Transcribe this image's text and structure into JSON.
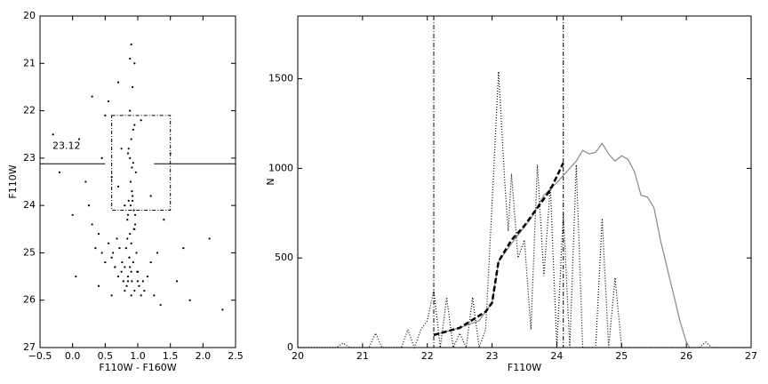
{
  "chart_data": [
    {
      "type": "scatter",
      "xlabel": "F110W - F160W",
      "ylabel": "F110W",
      "xlim": [
        -0.5,
        2.5
      ],
      "ylim": [
        27,
        20
      ],
      "y_inverted": true,
      "xticks": [
        {
          "value": -0.5,
          "label": "−0.5"
        },
        {
          "value": 0,
          "label": "0.0"
        },
        {
          "value": 0.5,
          "label": "0.5"
        },
        {
          "value": 1,
          "label": "1.0"
        },
        {
          "value": 1.5,
          "label": "1.5"
        },
        {
          "value": 2,
          "label": "2.0"
        },
        {
          "value": 2.5,
          "label": "2.5"
        }
      ],
      "yticks": [
        20,
        21,
        22,
        23,
        24,
        25,
        26,
        27
      ],
      "color": "#000000",
      "x": [
        0.92,
        0.88,
        0.95,
        0.9,
        0.85,
        0.93,
        0.97,
        0.89,
        0.91,
        0.86,
        0.94,
        0.84,
        0.96,
        0.88,
        0.9,
        0.82,
        0.98,
        0.87,
        0.93,
        0.8,
        0.99,
        0.85,
        0.91,
        0.78,
        1.02,
        0.83,
        0.95,
        0.75,
        1.05,
        0.8,
        0.9,
        0.7,
        1.08,
        0.76,
        0.88,
        0.65,
        1.1,
        0.72,
        0.95,
        0.6,
        1.15,
        0.68,
        0.85,
        0.55,
        1.2,
        0.62,
        0.92,
        0.5,
        1.25,
        0.45,
        0.8,
        0.4,
        1.0,
        0.35,
        0.7,
        0.3,
        0.9,
        0.25,
        1.3,
        0.6,
        0.75,
        0.55,
        0.45,
        0.95,
        1.05,
        0.88,
        1.4,
        0.2,
        1.6,
        0.1,
        1.8,
        0.0,
        2.1,
        -0.2,
        0.7,
        1.2,
        0.5,
        1.5,
        0.3,
        0.93,
        0.91,
        0.89,
        0.94,
        0.87,
        0.9,
        0.92,
        0.86,
        0.96,
        0.88,
        0.84,
        1.0,
        0.6,
        0.4,
        1.35,
        2.3,
        0.05,
        1.7,
        -0.3,
        0.65,
        0.85
      ],
      "values": [
        21.5,
        22.0,
        22.3,
        22.6,
        22.9,
        23.1,
        23.3,
        23.5,
        23.7,
        23.9,
        24.1,
        24.3,
        24.4,
        24.6,
        24.8,
        24.9,
        25.0,
        25.1,
        25.2,
        25.3,
        25.4,
        25.5,
        25.6,
        25.6,
        25.7,
        25.7,
        25.8,
        25.4,
        25.9,
        25.8,
        25.9,
        25.5,
        25.6,
        25.2,
        25.3,
        25.3,
        25.8,
        24.9,
        24.5,
        25.1,
        25.5,
        24.7,
        24.2,
        24.8,
        25.2,
        25.0,
        23.9,
        25.2,
        25.9,
        25.0,
        24.0,
        24.6,
        25.4,
        24.9,
        23.6,
        24.4,
        20.6,
        24.0,
        25.0,
        23.4,
        22.8,
        21.8,
        23.0,
        21.0,
        22.2,
        20.9,
        24.3,
        23.5,
        25.6,
        22.6,
        26.0,
        24.2,
        24.7,
        23.3,
        21.4,
        23.8,
        22.1,
        22.9,
        21.7,
        22.4,
        23.2,
        24.0,
        24.5,
        25.1,
        25.4,
        23.8,
        22.8,
        24.2,
        23.0,
        24.7,
        25.6,
        25.9,
        25.7,
        26.1,
        26.2,
        25.5,
        24.9,
        22.5,
        25.3,
        25.6
      ],
      "cut_level": 23.12,
      "cut_gap": [
        0.5,
        1.25
      ],
      "box_x": [
        0.6,
        1.5
      ],
      "box_y": [
        22.1,
        24.1
      ]
    },
    {
      "type": "line",
      "xlabel": "F110W",
      "ylabel": "N",
      "xlim": [
        20,
        27
      ],
      "ylim": [
        0,
        1850
      ],
      "xticks": [
        20,
        21,
        22,
        23,
        24,
        25,
        26,
        27
      ],
      "yticks": [
        0,
        500,
        1000,
        1500
      ],
      "vlines": [
        22.1,
        24.1
      ],
      "series": [
        {
          "color": "#888888",
          "style": "solid",
          "x": [
            22.1,
            22.5,
            22.8,
            23.0,
            23.1,
            23.3,
            23.6,
            23.8,
            24.0,
            24.2,
            24.3,
            24.4,
            24.5,
            24.6,
            24.7,
            24.8,
            24.9,
            25.0,
            25.1,
            25.2,
            25.3,
            25.4,
            25.5,
            25.6,
            25.7,
            25.8,
            25.9,
            26.0,
            26.05
          ],
          "values": [
            70,
            110,
            150,
            250,
            480,
            580,
            720,
            850,
            920,
            1000,
            1040,
            1100,
            1080,
            1090,
            1140,
            1080,
            1040,
            1070,
            1050,
            980,
            850,
            840,
            780,
            600,
            450,
            300,
            150,
            30,
            0
          ]
        },
        {
          "color": "#000000",
          "style": "dotted",
          "x": [
            20,
            20.6,
            20.7,
            20.8,
            21.1,
            21.2,
            21.3,
            21.6,
            21.7,
            21.8,
            21.9,
            22.0,
            22.1,
            22.2,
            22.3,
            22.4,
            22.5,
            22.6,
            22.7,
            22.8,
            22.9,
            23.0,
            23.1,
            23.2,
            23.25,
            23.3,
            23.4,
            23.5,
            23.6,
            23.7,
            23.8,
            23.9,
            24.0,
            24.1,
            24.2,
            24.3,
            24.4,
            24.6,
            24.7,
            24.8,
            24.9,
            25.0,
            26.2,
            26.3,
            26.4,
            27
          ],
          "values": [
            0,
            0,
            25,
            0,
            0,
            80,
            0,
            0,
            100,
            0,
            100,
            150,
            320,
            0,
            280,
            0,
            80,
            0,
            280,
            0,
            100,
            800,
            1540,
            900,
            650,
            970,
            500,
            600,
            100,
            1020,
            400,
            900,
            0,
            750,
            0,
            1020,
            0,
            0,
            720,
            0,
            390,
            0,
            0,
            30,
            0,
            0
          ]
        },
        {
          "color": "#000000",
          "style": "dashed",
          "x": [
            22.1,
            22.5,
            22.9,
            23.0,
            23.1,
            23.3,
            23.5,
            23.7,
            23.9,
            24.1
          ],
          "values": [
            70,
            110,
            200,
            250,
            480,
            600,
            680,
            780,
            880,
            1030
          ]
        }
      ]
    }
  ]
}
